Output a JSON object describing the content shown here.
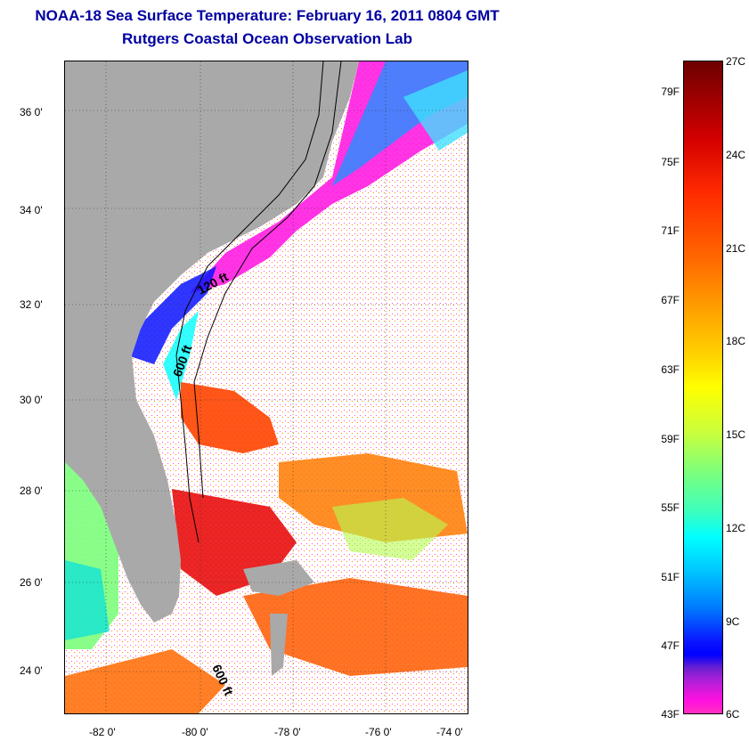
{
  "title": {
    "line1": "NOAA-18 Sea Surface Temperature:  February 16, 2011 0804 GMT",
    "line2": "Rutgers Coastal Ocean Observation Lab"
  },
  "map": {
    "lat_labels": [
      "36 0'",
      "34 0'",
      "32 0'",
      "30 0'",
      "28 0'",
      "26 0'",
      "24 0'"
    ],
    "lon_labels": [
      "-82 0'",
      "-80 0'",
      "-78 0'",
      "-76 0'",
      "-74 0'"
    ],
    "contour_labels": [
      "120 ft",
      "600 ft",
      "600 ft"
    ],
    "land_color": "#a9a9a9",
    "cloud_color": "#ffffff"
  },
  "colorbar": {
    "fahrenheit": [
      "79F",
      "75F",
      "71F",
      "67F",
      "63F",
      "59F",
      "55F",
      "51F",
      "47F",
      "43F"
    ],
    "celsius": [
      "27C",
      "24C",
      "21C",
      "18C",
      "15C",
      "12C",
      "9C",
      "6C"
    ]
  }
}
